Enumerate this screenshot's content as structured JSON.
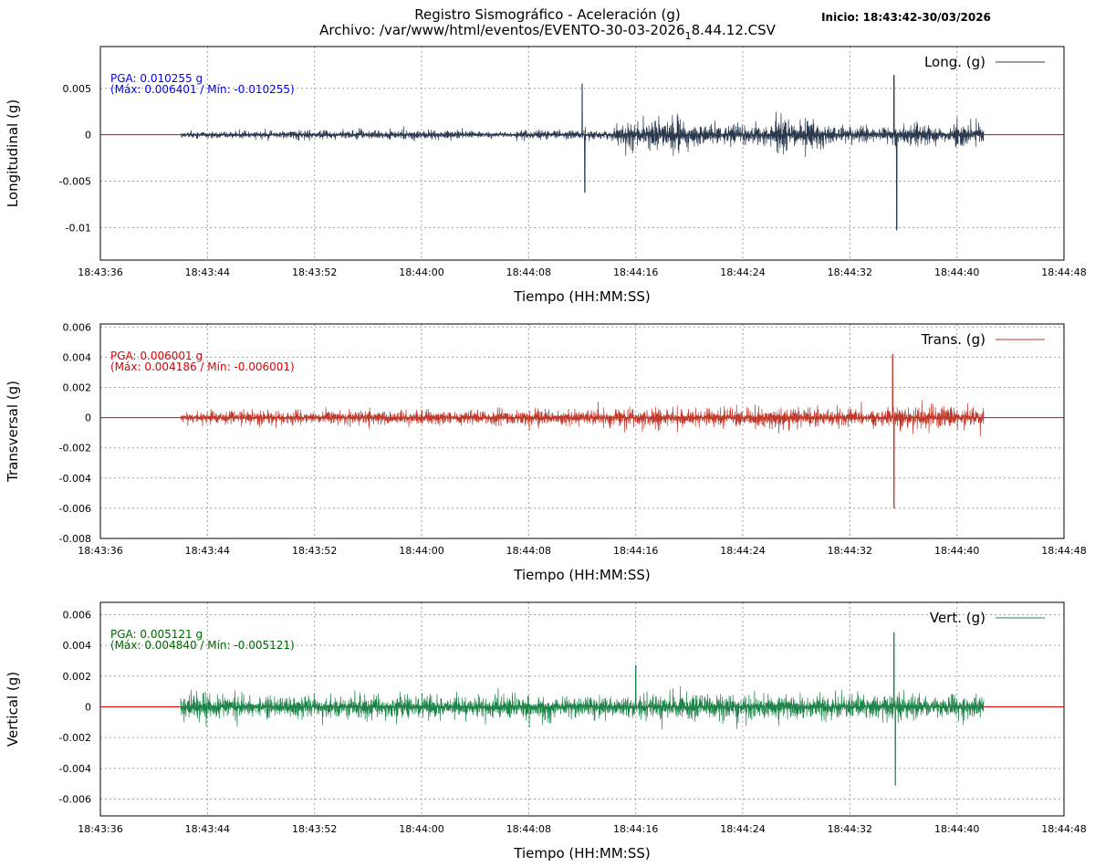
{
  "header": {
    "title_line1": "Registro Sismográfico - Aceleración (g)",
    "title_line2_pre": "Archivo: /var/www/html/eventos/EVENTO-30-03-2026",
    "title_line2_sub": "1",
    "title_line2_post": "8.44.12.CSV",
    "inicio": "Inicio: 18:43:42-30/03/2026"
  },
  "colors": {
    "baseline": "#e00000",
    "grid": "#a0a0a0"
  },
  "chart_data": [
    {
      "type": "line",
      "xlabel": "Tiempo (HH:MM:SS)",
      "ylabel": "Longitudinal (g)",
      "legend": "Long. (g)",
      "legend_position": "top-right",
      "grid": true,
      "color": "#2b3a4f",
      "pga_text_color": "#0000ff",
      "pga_line1": "PGA: 0.010255 g",
      "pga_line2": "(Máx: 0.006401 / Mín: -0.010255)",
      "pga": 0.010255,
      "max": 0.006401,
      "min": -0.010255,
      "ylim": [
        -0.0135,
        0.0095
      ],
      "yticks": [
        0.005,
        0,
        -0.005,
        -0.01
      ],
      "ytick_labels": [
        "0.005",
        "0",
        "-0.005",
        "-0.01"
      ],
      "xlim": [
        "18:43:36",
        "18:44:48"
      ],
      "xtick_labels": [
        "18:43:36",
        "18:43:44",
        "18:43:52",
        "18:44:00",
        "18:44:08",
        "18:44:16",
        "18:44:24",
        "18:44:32",
        "18:44:40",
        "18:44:48"
      ],
      "signal_start": "18:43:42",
      "signal_end": "18:44:42",
      "envelope": [
        [
          0,
          0.0008
        ],
        [
          6,
          0.0008
        ],
        [
          10,
          0.0012
        ],
        [
          20,
          0.0012
        ],
        [
          24,
          0.0006
        ],
        [
          26,
          0.0013
        ],
        [
          30,
          0.0012
        ],
        [
          32,
          0.0011
        ],
        [
          33,
          0.0027
        ],
        [
          34,
          0.0035
        ],
        [
          36,
          0.0038
        ],
        [
          37,
          0.0048
        ],
        [
          38,
          0.003
        ],
        [
          40,
          0.0025
        ],
        [
          41,
          0.0028
        ],
        [
          42,
          0.002
        ],
        [
          44,
          0.0025
        ],
        [
          45,
          0.0045
        ],
        [
          46,
          0.0035
        ],
        [
          47,
          0.0035
        ],
        [
          48,
          0.0025
        ],
        [
          50,
          0.002
        ],
        [
          52,
          0.0018
        ],
        [
          54,
          0.002
        ],
        [
          55,
          0.003
        ],
        [
          57,
          0.0013
        ],
        [
          58,
          0.003
        ],
        [
          59,
          0.0025
        ],
        [
          60,
          0.0026
        ],
        [
          61,
          0.002
        ],
        [
          62,
          0.001
        ]
      ],
      "spikes": [
        {
          "t": "18:44:12",
          "y": 0.0055
        },
        {
          "t": "18:44:12.2",
          "y": -0.0062
        },
        {
          "t": "18:44:35.3",
          "y": 0.006401
        },
        {
          "t": "18:44:35.5",
          "y": -0.010255
        }
      ]
    },
    {
      "type": "line",
      "xlabel": "Tiempo (HH:MM:SS)",
      "ylabel": "Transversal (g)",
      "legend": "Trans. (g)",
      "legend_position": "top-right",
      "grid": true,
      "color": "#c0392b",
      "pga_text_color": "#e00000",
      "pga_line1": "PGA: 0.006001 g",
      "pga_line2": "(Máx: 0.004186 / Mín: -0.006001)",
      "pga": 0.006001,
      "max": 0.004186,
      "min": -0.006001,
      "ylim": [
        -0.008,
        0.0062
      ],
      "yticks": [
        0.006,
        0.004,
        0.002,
        0,
        -0.002,
        -0.004,
        -0.006,
        -0.008
      ],
      "ytick_labels": [
        "0.006",
        "0.004",
        "0.002",
        "0",
        "-0.002",
        "-0.004",
        "-0.006",
        "-0.008"
      ],
      "xlim": [
        "18:43:36",
        "18:44:48"
      ],
      "xtick_labels": [
        "18:43:36",
        "18:43:44",
        "18:43:52",
        "18:44:00",
        "18:44:08",
        "18:44:16",
        "18:44:24",
        "18:44:32",
        "18:44:40",
        "18:44:48"
      ],
      "signal_start": "18:43:42",
      "signal_end": "18:44:42",
      "envelope": [
        [
          0,
          0.0009
        ],
        [
          6,
          0.001
        ],
        [
          10,
          0.0011
        ],
        [
          20,
          0.001
        ],
        [
          26,
          0.0011
        ],
        [
          30,
          0.0012
        ],
        [
          33,
          0.0013
        ],
        [
          36,
          0.0015
        ],
        [
          38,
          0.0012
        ],
        [
          40,
          0.0012
        ],
        [
          44,
          0.0016
        ],
        [
          46,
          0.0014
        ],
        [
          50,
          0.0013
        ],
        [
          53,
          0.0012
        ],
        [
          55,
          0.0018
        ],
        [
          57,
          0.0017
        ],
        [
          60,
          0.0013
        ],
        [
          62,
          0.0011
        ]
      ],
      "spikes": [
        {
          "t": "18:44:35.2",
          "y": 0.004186
        },
        {
          "t": "18:44:35.3",
          "y": -0.006001
        }
      ]
    },
    {
      "type": "line",
      "xlabel": "Tiempo (HH:MM:SS)",
      "ylabel": "Vertical (g)",
      "legend": "Vert. (g)",
      "legend_position": "top-right",
      "grid": true,
      "color": "#1e8449",
      "pga_text_color": "#006400",
      "pga_line1": "PGA: 0.005121 g",
      "pga_line2": "(Máx: 0.004840 / Mín: -0.005121)",
      "pga": 0.005121,
      "max": 0.00484,
      "min": -0.005121,
      "ylim": [
        -0.0071,
        0.0068
      ],
      "yticks": [
        0.006,
        0.004,
        0.002,
        0,
        -0.002,
        -0.004,
        -0.006
      ],
      "ytick_labels": [
        "0.006",
        "0.004",
        "0.002",
        "0",
        "-0.002",
        "-0.004",
        "-0.006"
      ],
      "xlim": [
        "18:43:36",
        "18:44:48"
      ],
      "xtick_labels": [
        "18:43:36",
        "18:43:44",
        "18:43:52",
        "18:44:00",
        "18:44:08",
        "18:44:16",
        "18:44:24",
        "18:44:32",
        "18:44:40",
        "18:44:48"
      ],
      "signal_start": "18:43:42",
      "signal_end": "18:44:42",
      "envelope": [
        [
          0,
          0.0016
        ],
        [
          6,
          0.0017
        ],
        [
          10,
          0.0016
        ],
        [
          16,
          0.0018
        ],
        [
          20,
          0.0016
        ],
        [
          26,
          0.0016
        ],
        [
          30,
          0.0017
        ],
        [
          34,
          0.0018
        ],
        [
          36,
          0.0017
        ],
        [
          38,
          0.002
        ],
        [
          40,
          0.002
        ],
        [
          44,
          0.0018
        ],
        [
          48,
          0.0017
        ],
        [
          52,
          0.0017
        ],
        [
          56,
          0.0018
        ],
        [
          58,
          0.0017
        ],
        [
          62,
          0.0016
        ]
      ],
      "spikes": [
        {
          "t": "18:44:16",
          "y": 0.0027
        },
        {
          "t": "18:44:35.3",
          "y": 0.00484
        },
        {
          "t": "18:44:35.4",
          "y": -0.005121
        }
      ]
    }
  ]
}
